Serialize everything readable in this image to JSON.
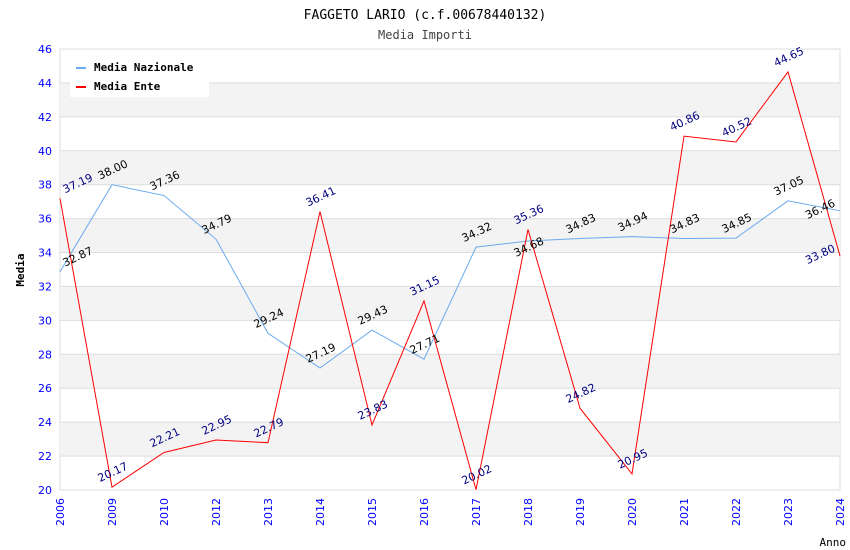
{
  "chart_data": {
    "type": "line",
    "title": "FAGGETO LARIO (c.f.00678440132)",
    "subtitle": "Media Importi",
    "xlabel": "Anno",
    "ylabel": "Media",
    "ylim": [
      20,
      46
    ],
    "yticks": [
      20,
      22,
      24,
      26,
      28,
      30,
      32,
      34,
      36,
      38,
      40,
      42,
      44,
      46
    ],
    "categories": [
      "2006",
      "2009",
      "2010",
      "2012",
      "2013",
      "2014",
      "2015",
      "2016",
      "2017",
      "2018",
      "2019",
      "2020",
      "2021",
      "2022",
      "2023",
      "2024"
    ],
    "legend_position": "top-right",
    "series": [
      {
        "name": "Media Nazionale",
        "color": "#6aaaee",
        "label_color": "#000000",
        "values": [
          32.87,
          38.0,
          37.36,
          34.79,
          29.24,
          27.19,
          29.43,
          27.71,
          34.32,
          34.68,
          34.83,
          34.94,
          34.83,
          34.85,
          37.05,
          36.46
        ]
      },
      {
        "name": "Media Ente",
        "color": "#ff0000",
        "label_color": "#000080",
        "values": [
          37.19,
          20.17,
          22.21,
          22.95,
          22.79,
          36.41,
          23.83,
          31.15,
          20.02,
          35.36,
          24.82,
          20.95,
          40.86,
          40.52,
          44.65,
          33.8
        ]
      }
    ]
  }
}
